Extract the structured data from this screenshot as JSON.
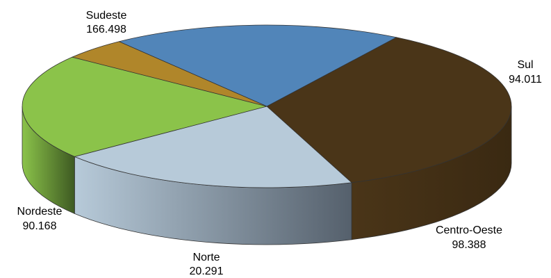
{
  "chart_data": {
    "type": "pie",
    "categories": [
      "Sudeste",
      "Sul",
      "Centro-Oeste",
      "Norte",
      "Nordeste"
    ],
    "values": [
      166498,
      94011,
      98388,
      20291,
      90168
    ],
    "value_labels": [
      "166.498",
      "94.011",
      "98.388",
      "20.291",
      "90.168"
    ],
    "colors": [
      "#4a3518",
      "#b7cad9",
      "#8bc34a",
      "#b0862a",
      "#5185b9"
    ],
    "side_colors": [
      "#3a2912",
      "#55606c",
      "#3e5a22",
      "#7a5c1c",
      "#426b93"
    ],
    "title": "",
    "legend": "none"
  }
}
